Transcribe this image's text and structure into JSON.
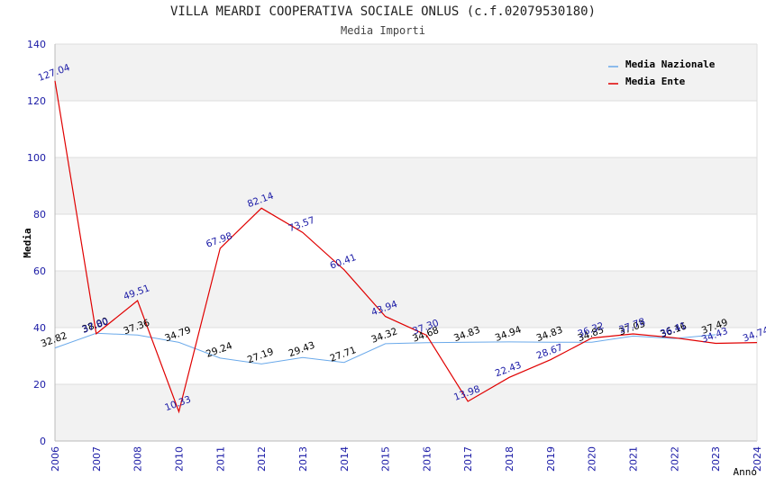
{
  "title": "VILLA MEARDI COOPERATIVA SOCIALE ONLUS (c.f.02079530180)",
  "subtitle": "Media Importi",
  "colors": {
    "nazionale": "#6aa9ea",
    "ente": "#e00000",
    "band": "#f2f2f2",
    "grid": "#dddddd",
    "nazionale_label": "#000000",
    "ente_label": "#1a1aa6"
  },
  "chart_data": {
    "type": "line",
    "title": "VILLA MEARDI COOPERATIVA SOCIALE ONLUS (c.f.02079530180)",
    "subtitle": "Media Importi",
    "xlabel": "Anno",
    "ylabel": "Media",
    "ylim": [
      0,
      140
    ],
    "yticks": [
      0,
      20,
      40,
      60,
      80,
      100,
      120,
      140
    ],
    "categories": [
      "2006",
      "2007",
      "2008",
      "2010",
      "2011",
      "2012",
      "2013",
      "2014",
      "2015",
      "2016",
      "2017",
      "2018",
      "2019",
      "2020",
      "2021",
      "2022",
      "2023",
      "2024"
    ],
    "series": [
      {
        "name": "Media Nazionale",
        "label_key": "nazionale",
        "values": [
          32.82,
          38.0,
          37.36,
          34.79,
          29.24,
          27.19,
          29.43,
          27.71,
          34.32,
          34.68,
          34.83,
          34.94,
          34.83,
          34.85,
          37.03,
          36.16,
          37.49,
          null
        ],
        "labels": [
          "32.82",
          "38.00",
          "37.36",
          "34.79",
          "29.24",
          "27.19",
          "29.43",
          "27.71",
          "34.32",
          "34.68",
          "34.83",
          "34.94",
          "34.83",
          "34.85",
          "37.03",
          "36.16",
          "37.49",
          ""
        ]
      },
      {
        "name": "Media Ente",
        "label_key": "ente",
        "values": [
          127.04,
          37.8,
          49.51,
          10.33,
          67.98,
          82.14,
          73.57,
          60.41,
          43.94,
          37.3,
          13.98,
          22.43,
          28.67,
          36.32,
          37.78,
          36.41,
          34.43,
          34.74
        ],
        "labels": [
          "127.04",
          "37.80",
          "49.51",
          "10.33",
          "67.98",
          "82.14",
          "73.57",
          "60.41",
          "43.94",
          "37.30",
          "13.98",
          "22.43",
          "28.67",
          "36.32",
          "37.78",
          "36.41",
          "34.43",
          "34.74"
        ]
      }
    ],
    "legend": {
      "position": "top-right",
      "entries": [
        "Media Nazionale",
        "Media Ente"
      ]
    }
  }
}
